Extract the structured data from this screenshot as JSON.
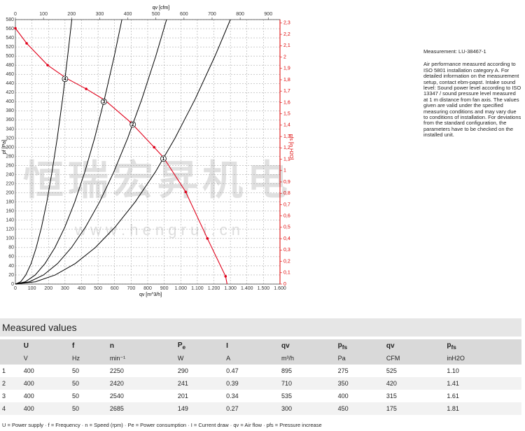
{
  "chart_data": {
    "type": "line",
    "x_label": "qv [m^3/h]",
    "x2_label": "qv [cfm]",
    "y_label": "pf [Pa]",
    "y2_label": "pfs [in H2O]",
    "xlim": [
      0,
      1600
    ],
    "xticks": [
      0,
      100,
      200,
      300,
      400,
      500,
      600,
      700,
      800,
      900,
      {
        "value": 1000,
        "label": "1.000"
      },
      {
        "value": 1100,
        "label": "1.100"
      },
      {
        "value": 1200,
        "label": "1.200"
      },
      {
        "value": 1300,
        "label": "1.300"
      },
      {
        "value": 1400,
        "label": "1.400"
      },
      {
        "value": 1500,
        "label": "1.500"
      },
      {
        "value": 1600,
        "label": "1.600"
      }
    ],
    "x2lim": [
      0,
      941.7
    ],
    "x2ticks": [
      0,
      100,
      200,
      300,
      400,
      500,
      600,
      700,
      800,
      900
    ],
    "ylim": [
      0,
      580
    ],
    "yticks": [
      0,
      20,
      40,
      60,
      80,
      100,
      120,
      140,
      160,
      180,
      200,
      220,
      240,
      260,
      280,
      300,
      320,
      340,
      360,
      380,
      400,
      420,
      440,
      460,
      480,
      500,
      520,
      540,
      560,
      580
    ],
    "y2lim": [
      0,
      2.33
    ],
    "y2ticks": [
      0,
      {
        "value": 0.1,
        "label": "0,1"
      },
      {
        "value": 0.2,
        "label": "0,2"
      },
      {
        "value": 0.3,
        "label": "0,3"
      },
      {
        "value": 0.4,
        "label": "0,4"
      },
      {
        "value": 0.5,
        "label": "0,5"
      },
      {
        "value": 0.6,
        "label": "0,6"
      },
      {
        "value": 0.7,
        "label": "0,7"
      },
      {
        "value": 0.8,
        "label": "0,8"
      },
      {
        "value": 0.9,
        "label": "0,9"
      },
      1,
      {
        "value": 1.1,
        "label": "1,1"
      },
      {
        "value": 1.2,
        "label": "1,2"
      },
      {
        "value": 1.3,
        "label": "1,3"
      },
      {
        "value": 1.4,
        "label": "1,4"
      },
      {
        "value": 1.5,
        "label": "1,5"
      },
      {
        "value": 1.6,
        "label": "1,6"
      },
      {
        "value": 1.7,
        "label": "1,7"
      },
      {
        "value": 1.8,
        "label": "1,8"
      },
      {
        "value": 1.9,
        "label": "1,9"
      },
      2,
      {
        "value": 2.1,
        "label": "2,1"
      },
      {
        "value": 2.2,
        "label": "2,2"
      },
      {
        "value": 2.3,
        "label": "2,3"
      }
    ],
    "grid": true,
    "series": [
      {
        "name": "1",
        "color": "#000000",
        "x": [
          0,
          121,
          241,
          362,
          483,
          603,
          724,
          845,
          965,
          1086,
          1207,
          1300
        ],
        "values": [
          0,
          5,
          20,
          45,
          80,
          125,
          180,
          245,
          320,
          405,
          500,
          580
        ]
      },
      {
        "name": "2",
        "color": "#000000",
        "x": [
          0,
          85,
          170,
          255,
          339,
          424,
          509,
          594,
          679,
          764,
          849,
          914
        ],
        "values": [
          0,
          5,
          20,
          45,
          80,
          125,
          180,
          245,
          320,
          405,
          500,
          580
        ]
      },
      {
        "name": "3",
        "color": "#000000",
        "x": [
          0,
          60,
          120,
          179,
          239,
          299,
          359,
          419,
          479,
          538,
          598,
          644
        ],
        "values": [
          0,
          5,
          20,
          45,
          80,
          125,
          180,
          245,
          320,
          405,
          500,
          580
        ]
      },
      {
        "name": "4",
        "color": "#000000",
        "x": [
          0,
          32,
          63,
          95,
          126,
          158,
          190,
          221,
          253,
          285,
          316,
          341
        ],
        "values": [
          0,
          5,
          20,
          45,
          80,
          125,
          180,
          245,
          320,
          405,
          500,
          580
        ]
      },
      {
        "color": "#e0001a",
        "x": [
          0,
          68,
          195,
          310,
          428,
          542,
          699,
          839,
          895,
          1030,
          1161,
          1271,
          1280
        ],
        "values": [
          561,
          528,
          480,
          451,
          428,
          403,
          354,
          300,
          278,
          202,
          100,
          17,
          0
        ]
      }
    ],
    "watermark": [
      "恒瑞宏昇机电",
      "w w w . h e n g r u i . c n"
    ]
  },
  "measurement": "Measurement: LU-38467-1",
  "description": "Air performance measured according to ISO 5801 installation category A. For detailed information on the measurement setup, contact ebm-papst. Intake sound level: Sound power level according to ISO 13347 / sound pressure level measured at 1 m distance from fan axis. The values given are valid under the specified measuring conditions and may vary due to conditions of installation. For deviations from the standard configuration, the parameters have to be checked on the installed unit.",
  "section_title": "Measured values",
  "table": {
    "header": [
      "U",
      "f",
      "n",
      [
        "P",
        "e"
      ],
      "I",
      "qv",
      [
        "p",
        "fs"
      ],
      "qv",
      [
        "p",
        "fs"
      ]
    ],
    "units": [
      "V",
      "Hz",
      "min⁻¹",
      "W",
      "A",
      "m³/h",
      "Pa",
      "CFM",
      "inH2O"
    ],
    "rows": [
      [
        "1",
        "400",
        "50",
        "2250",
        "290",
        "0.47",
        "895",
        "275",
        "525",
        "1.10"
      ],
      [
        "2",
        "400",
        "50",
        "2420",
        "241",
        "0.39",
        "710",
        "350",
        "420",
        "1.41"
      ],
      [
        "3",
        "400",
        "50",
        "2540",
        "201",
        "0.34",
        "535",
        "400",
        "315",
        "1.61"
      ],
      [
        "4",
        "400",
        "50",
        "2685",
        "149",
        "0.27",
        "300",
        "450",
        "175",
        "1.81"
      ]
    ]
  },
  "footnote": "U = Power supply · f = Frequency · n = Speed (rpm) · Pe = Power consumption · I = Current draw · qv = Air flow · pfs = Pressure increase"
}
